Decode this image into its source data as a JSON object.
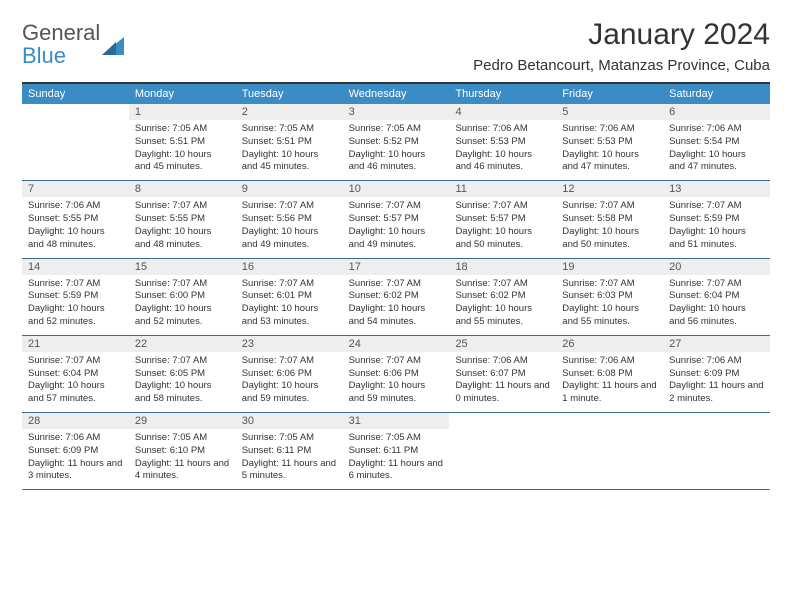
{
  "logo": {
    "word1": "General",
    "word2": "Blue"
  },
  "title": "January 2024",
  "location": "Pedro Betancourt, Matanzas Province, Cuba",
  "dayHeaders": [
    "Sunday",
    "Monday",
    "Tuesday",
    "Wednesday",
    "Thursday",
    "Friday",
    "Saturday"
  ],
  "colors": {
    "headerBg": "#3b8bc4",
    "headerText": "#ffffff",
    "dayNumBg": "#eeeeee",
    "weekBorder": "#3b6b8a",
    "topBorder": "#333333",
    "text": "#333333",
    "logoGray": "#555555",
    "logoBlue": "#3b8bc4",
    "background": "#ffffff"
  },
  "typography": {
    "titleFontsize": 30,
    "locationFontsize": 15,
    "dayHeaderFontsize": 11,
    "dayNumberFontsize": 11,
    "detailFontsize": 9.5,
    "logoFontsize": 22
  },
  "weeks": [
    [
      {
        "day": "",
        "sunrise": "",
        "sunset": "",
        "daylight": ""
      },
      {
        "day": "1",
        "sunrise": "Sunrise: 7:05 AM",
        "sunset": "Sunset: 5:51 PM",
        "daylight": "Daylight: 10 hours and 45 minutes."
      },
      {
        "day": "2",
        "sunrise": "Sunrise: 7:05 AM",
        "sunset": "Sunset: 5:51 PM",
        "daylight": "Daylight: 10 hours and 45 minutes."
      },
      {
        "day": "3",
        "sunrise": "Sunrise: 7:05 AM",
        "sunset": "Sunset: 5:52 PM",
        "daylight": "Daylight: 10 hours and 46 minutes."
      },
      {
        "day": "4",
        "sunrise": "Sunrise: 7:06 AM",
        "sunset": "Sunset: 5:53 PM",
        "daylight": "Daylight: 10 hours and 46 minutes."
      },
      {
        "day": "5",
        "sunrise": "Sunrise: 7:06 AM",
        "sunset": "Sunset: 5:53 PM",
        "daylight": "Daylight: 10 hours and 47 minutes."
      },
      {
        "day": "6",
        "sunrise": "Sunrise: 7:06 AM",
        "sunset": "Sunset: 5:54 PM",
        "daylight": "Daylight: 10 hours and 47 minutes."
      }
    ],
    [
      {
        "day": "7",
        "sunrise": "Sunrise: 7:06 AM",
        "sunset": "Sunset: 5:55 PM",
        "daylight": "Daylight: 10 hours and 48 minutes."
      },
      {
        "day": "8",
        "sunrise": "Sunrise: 7:07 AM",
        "sunset": "Sunset: 5:55 PM",
        "daylight": "Daylight: 10 hours and 48 minutes."
      },
      {
        "day": "9",
        "sunrise": "Sunrise: 7:07 AM",
        "sunset": "Sunset: 5:56 PM",
        "daylight": "Daylight: 10 hours and 49 minutes."
      },
      {
        "day": "10",
        "sunrise": "Sunrise: 7:07 AM",
        "sunset": "Sunset: 5:57 PM",
        "daylight": "Daylight: 10 hours and 49 minutes."
      },
      {
        "day": "11",
        "sunrise": "Sunrise: 7:07 AM",
        "sunset": "Sunset: 5:57 PM",
        "daylight": "Daylight: 10 hours and 50 minutes."
      },
      {
        "day": "12",
        "sunrise": "Sunrise: 7:07 AM",
        "sunset": "Sunset: 5:58 PM",
        "daylight": "Daylight: 10 hours and 50 minutes."
      },
      {
        "day": "13",
        "sunrise": "Sunrise: 7:07 AM",
        "sunset": "Sunset: 5:59 PM",
        "daylight": "Daylight: 10 hours and 51 minutes."
      }
    ],
    [
      {
        "day": "14",
        "sunrise": "Sunrise: 7:07 AM",
        "sunset": "Sunset: 5:59 PM",
        "daylight": "Daylight: 10 hours and 52 minutes."
      },
      {
        "day": "15",
        "sunrise": "Sunrise: 7:07 AM",
        "sunset": "Sunset: 6:00 PM",
        "daylight": "Daylight: 10 hours and 52 minutes."
      },
      {
        "day": "16",
        "sunrise": "Sunrise: 7:07 AM",
        "sunset": "Sunset: 6:01 PM",
        "daylight": "Daylight: 10 hours and 53 minutes."
      },
      {
        "day": "17",
        "sunrise": "Sunrise: 7:07 AM",
        "sunset": "Sunset: 6:02 PM",
        "daylight": "Daylight: 10 hours and 54 minutes."
      },
      {
        "day": "18",
        "sunrise": "Sunrise: 7:07 AM",
        "sunset": "Sunset: 6:02 PM",
        "daylight": "Daylight: 10 hours and 55 minutes."
      },
      {
        "day": "19",
        "sunrise": "Sunrise: 7:07 AM",
        "sunset": "Sunset: 6:03 PM",
        "daylight": "Daylight: 10 hours and 55 minutes."
      },
      {
        "day": "20",
        "sunrise": "Sunrise: 7:07 AM",
        "sunset": "Sunset: 6:04 PM",
        "daylight": "Daylight: 10 hours and 56 minutes."
      }
    ],
    [
      {
        "day": "21",
        "sunrise": "Sunrise: 7:07 AM",
        "sunset": "Sunset: 6:04 PM",
        "daylight": "Daylight: 10 hours and 57 minutes."
      },
      {
        "day": "22",
        "sunrise": "Sunrise: 7:07 AM",
        "sunset": "Sunset: 6:05 PM",
        "daylight": "Daylight: 10 hours and 58 minutes."
      },
      {
        "day": "23",
        "sunrise": "Sunrise: 7:07 AM",
        "sunset": "Sunset: 6:06 PM",
        "daylight": "Daylight: 10 hours and 59 minutes."
      },
      {
        "day": "24",
        "sunrise": "Sunrise: 7:07 AM",
        "sunset": "Sunset: 6:06 PM",
        "daylight": "Daylight: 10 hours and 59 minutes."
      },
      {
        "day": "25",
        "sunrise": "Sunrise: 7:06 AM",
        "sunset": "Sunset: 6:07 PM",
        "daylight": "Daylight: 11 hours and 0 minutes."
      },
      {
        "day": "26",
        "sunrise": "Sunrise: 7:06 AM",
        "sunset": "Sunset: 6:08 PM",
        "daylight": "Daylight: 11 hours and 1 minute."
      },
      {
        "day": "27",
        "sunrise": "Sunrise: 7:06 AM",
        "sunset": "Sunset: 6:09 PM",
        "daylight": "Daylight: 11 hours and 2 minutes."
      }
    ],
    [
      {
        "day": "28",
        "sunrise": "Sunrise: 7:06 AM",
        "sunset": "Sunset: 6:09 PM",
        "daylight": "Daylight: 11 hours and 3 minutes."
      },
      {
        "day": "29",
        "sunrise": "Sunrise: 7:05 AM",
        "sunset": "Sunset: 6:10 PM",
        "daylight": "Daylight: 11 hours and 4 minutes."
      },
      {
        "day": "30",
        "sunrise": "Sunrise: 7:05 AM",
        "sunset": "Sunset: 6:11 PM",
        "daylight": "Daylight: 11 hours and 5 minutes."
      },
      {
        "day": "31",
        "sunrise": "Sunrise: 7:05 AM",
        "sunset": "Sunset: 6:11 PM",
        "daylight": "Daylight: 11 hours and 6 minutes."
      },
      {
        "day": "",
        "sunrise": "",
        "sunset": "",
        "daylight": ""
      },
      {
        "day": "",
        "sunrise": "",
        "sunset": "",
        "daylight": ""
      },
      {
        "day": "",
        "sunrise": "",
        "sunset": "",
        "daylight": ""
      }
    ]
  ]
}
